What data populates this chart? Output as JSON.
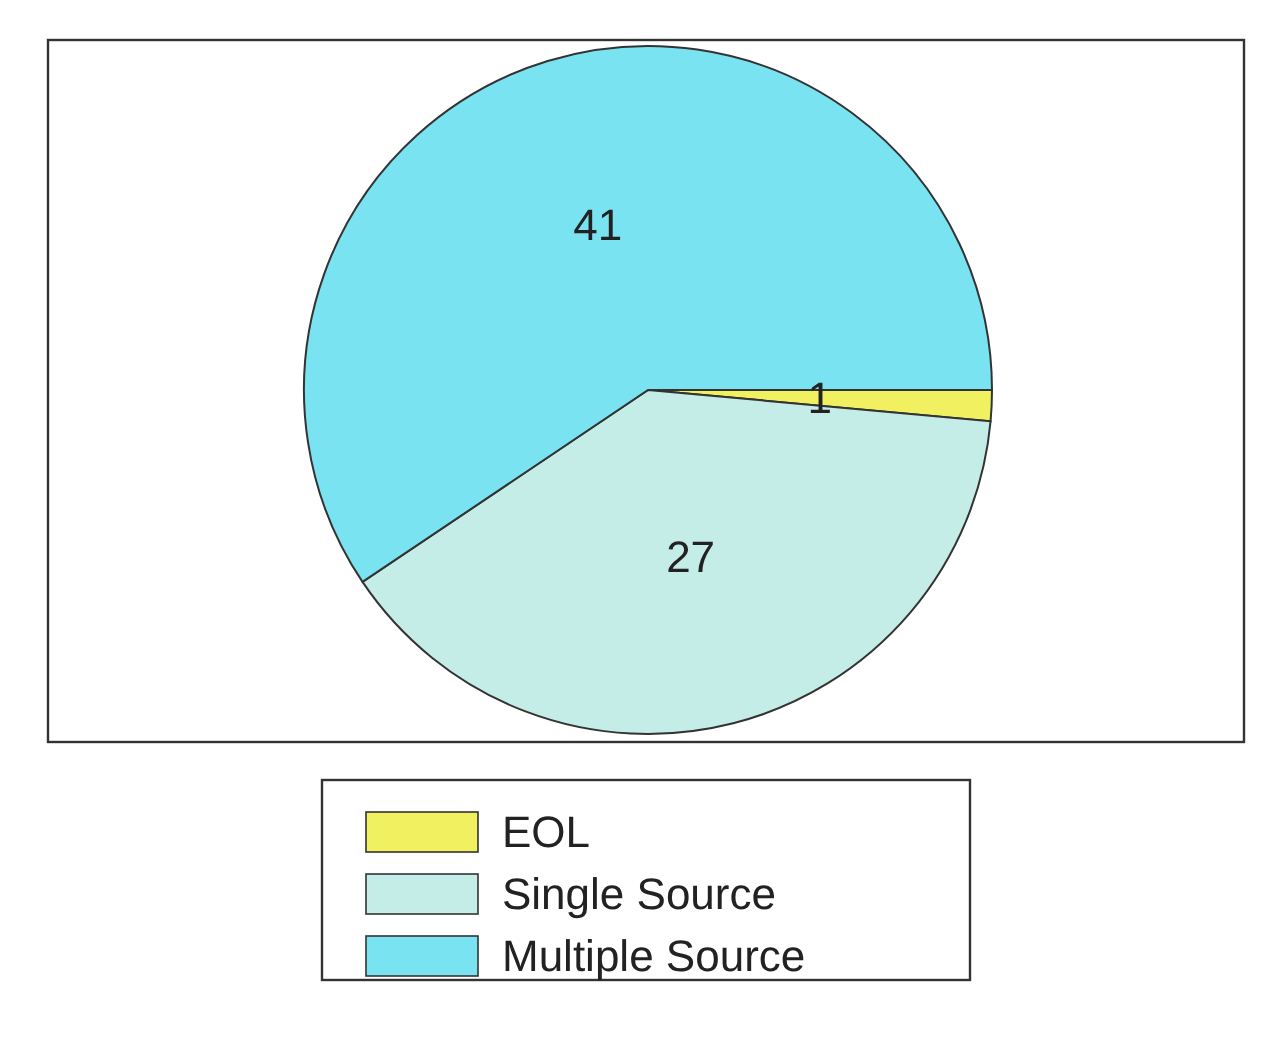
{
  "chart_data": {
    "type": "pie",
    "categories": [
      "EOL",
      "Single Source",
      "Multiple Source"
    ],
    "values": [
      1,
      27,
      41
    ],
    "colors": [
      "#f0f060",
      "#c5ede8",
      "#7ae3f2"
    ],
    "data_labels": true,
    "legend": "bottom"
  }
}
